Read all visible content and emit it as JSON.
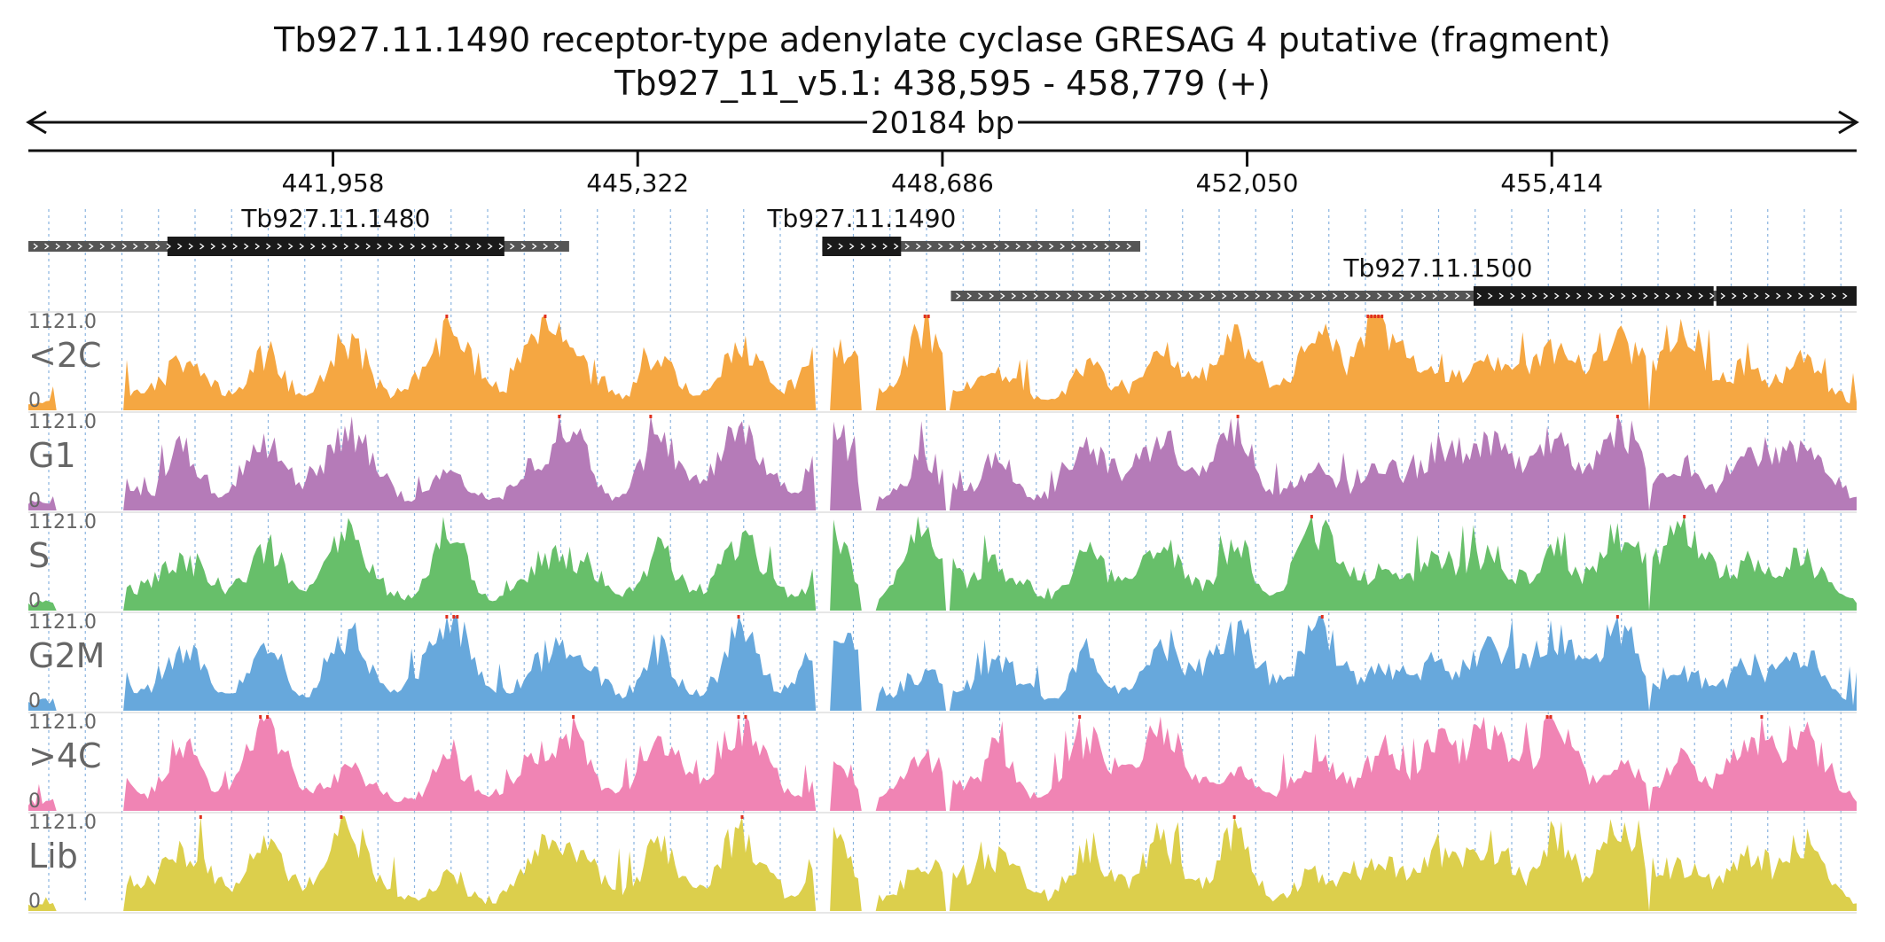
{
  "header": {
    "title": "Tb927.11.1490  receptor-type adenylate cyclase GRESAG 4  putative (fragment)",
    "location": "Tb927_11_v5.1: 438,595 - 458,779 (+)",
    "span_label": "20184 bp"
  },
  "region": {
    "chrom": "Tb927_11_v5.1",
    "start": 438595,
    "end": 458779,
    "strand": "+"
  },
  "ruler": {
    "ticks": [
      {
        "pos": 441958,
        "label": "441,958"
      },
      {
        "pos": 445322,
        "label": "445,322"
      },
      {
        "pos": 448686,
        "label": "448,686"
      },
      {
        "pos": 452050,
        "label": "452,050"
      },
      {
        "pos": 455414,
        "label": "455,414"
      }
    ]
  },
  "genes": [
    {
      "name": "Tb927.11.1480",
      "row": 0,
      "start": 438595,
      "end": 444565,
      "exons": [
        {
          "start": 440130,
          "end": 443850
        }
      ]
    },
    {
      "name": "Tb927.11.1490",
      "row": 0,
      "start": 447360,
      "end": 450870,
      "exons": [
        {
          "start": 447360,
          "end": 448230
        }
      ]
    },
    {
      "name": "Tb927.11.1500",
      "row": 1,
      "start": 448780,
      "end": 458779,
      "exons": [
        {
          "start": 454550,
          "end": 457200
        },
        {
          "start": 457230,
          "end": 458779
        }
      ]
    }
  ],
  "tracks": [
    {
      "label": "<2C",
      "color": "#f5a742",
      "max_label": "1121.0",
      "min_label": "0",
      "seed": 11
    },
    {
      "label": "G1",
      "color": "#b57bb8",
      "max_label": "1121.0",
      "min_label": "0",
      "seed": 23
    },
    {
      "label": "S",
      "color": "#67bf6a",
      "max_label": "1121.0",
      "min_label": "0",
      "seed": 37
    },
    {
      "label": "G2M",
      "color": "#67a8dc",
      "max_label": "1121.0",
      "min_label": "0",
      "seed": 41
    },
    {
      "label": ">4C",
      "color": "#f084b4",
      "max_label": "1121.0",
      "min_label": "0",
      "seed": 53
    },
    {
      "label": "Lib",
      "color": "#dccf4c",
      "max_label": "1121.0",
      "min_label": "0",
      "seed": 67
    }
  ],
  "colors": {
    "gene_intron": "#555555",
    "gene_exon": "#1a1a1a",
    "clip_marker": "#e0301e",
    "grid": "#8ab4e0"
  }
}
